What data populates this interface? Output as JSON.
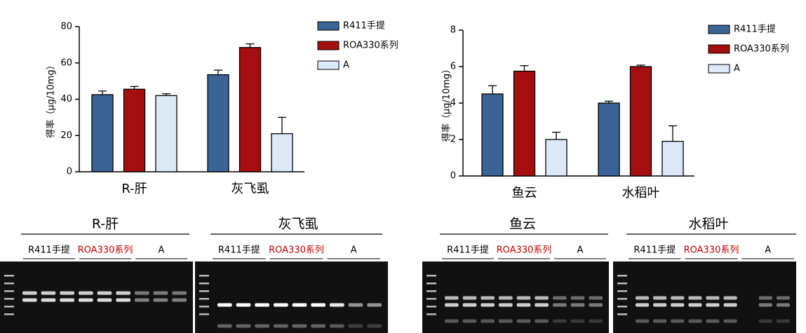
{
  "chart_data": [
    {
      "type": "bar",
      "ylabel": "得率（μg/10mg）",
      "categories": [
        "R-肝",
        "灰飞虱"
      ],
      "series": [
        {
          "name": "R411手提",
          "color": "#3a6496",
          "values": [
            42.5,
            53.5
          ],
          "errors": [
            2,
            2.5
          ]
        },
        {
          "name": "ROA330系列",
          "color": "#a50e0e",
          "values": [
            45.5,
            68.5
          ],
          "errors": [
            1.5,
            2
          ]
        },
        {
          "name": "A",
          "color": "#dce9f8",
          "values": [
            42,
            21
          ],
          "errors": [
            1,
            9
          ]
        }
      ],
      "ylim": [
        0,
        80
      ],
      "yticks": [
        0,
        20,
        40,
        60,
        80
      ]
    },
    {
      "type": "bar",
      "ylabel": "得率（μg/10mg）",
      "categories": [
        "鱼云",
        "水稻叶"
      ],
      "series": [
        {
          "name": "R411手提",
          "color": "#3a6496",
          "values": [
            4.5,
            4.0
          ],
          "errors": [
            0.45,
            0.1
          ]
        },
        {
          "name": "ROA330系列",
          "color": "#a50e0e",
          "values": [
            5.75,
            6.0
          ],
          "errors": [
            0.3,
            0.08
          ]
        },
        {
          "name": "A",
          "color": "#dce9f8",
          "values": [
            2.0,
            1.9
          ],
          "errors": [
            0.4,
            0.85
          ]
        }
      ],
      "ylim": [
        0,
        8
      ],
      "yticks": [
        0,
        2,
        4,
        6,
        8
      ]
    }
  ],
  "gels": [
    {
      "title": "R-肝",
      "groups": [
        "R411手提",
        "ROA330系列",
        "A"
      ]
    },
    {
      "title": "灰飞虱",
      "groups": [
        "R411手提",
        "ROA330系列",
        "A"
      ]
    },
    {
      "title": "鱼云",
      "groups": [
        "R411手提",
        "ROA330系列",
        "A"
      ]
    },
    {
      "title": "水稻叶",
      "groups": [
        "R411手提",
        "ROA330系列",
        "A"
      ]
    }
  ]
}
